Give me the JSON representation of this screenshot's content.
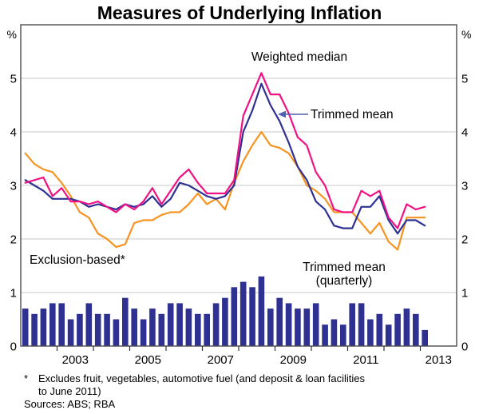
{
  "title": "Measures of Underlying Inflation",
  "axes": {
    "unit_left": "%",
    "unit_right": "%",
    "y_tick_labels": [
      "0",
      "1",
      "2",
      "3",
      "4",
      "5"
    ],
    "x_tick_labels": [
      "2003",
      "2005",
      "2007",
      "2009",
      "2011",
      "2013"
    ]
  },
  "annotations": {
    "weighted_median_label": "Weighted median",
    "trimmed_mean_label": "Trimmed mean",
    "exclusion_based_label": "Exclusion-based*",
    "bars_label_line1": "Trimmed mean",
    "bars_label_line2": "(quarterly)"
  },
  "footnote": {
    "asterisk": "*",
    "line1": "Excludes fruit, vegetables, automotive fuel (and deposit & loan facilities",
    "line2": "to June 2011)",
    "sources": "Sources: ABS; RBA"
  },
  "colors": {
    "weighted_median": "#f01285",
    "trimmed_mean": "#2e3192",
    "exclusion_based": "#f79421",
    "bars": "#2e3192",
    "arrow": "#5060b0",
    "gridline": "#c9c9c9",
    "frame": "#4d4d4d"
  },
  "chart_data": {
    "type": "line+bar",
    "title": "Measures of Underlying Inflation",
    "ylabel": "%",
    "ylim": [
      0,
      6
    ],
    "xlim": [
      2002,
      2014
    ],
    "y_ticks": [
      0,
      1,
      2,
      3,
      4,
      5
    ],
    "x_year_ticks": [
      2003,
      2004,
      2005,
      2006,
      2007,
      2008,
      2009,
      2010,
      2011,
      2012,
      2013
    ],
    "x_year_labels": [
      2003,
      2005,
      2007,
      2009,
      2011,
      2013
    ],
    "grid": "horizontal",
    "categories": [
      "2002Q1",
      "2002Q2",
      "2002Q3",
      "2002Q4",
      "2003Q1",
      "2003Q2",
      "2003Q3",
      "2003Q4",
      "2004Q1",
      "2004Q2",
      "2004Q3",
      "2004Q4",
      "2005Q1",
      "2005Q2",
      "2005Q3",
      "2005Q4",
      "2006Q1",
      "2006Q2",
      "2006Q3",
      "2006Q4",
      "2007Q1",
      "2007Q2",
      "2007Q3",
      "2007Q4",
      "2008Q1",
      "2008Q2",
      "2008Q3",
      "2008Q4",
      "2009Q1",
      "2009Q2",
      "2009Q3",
      "2009Q4",
      "2010Q1",
      "2010Q2",
      "2010Q3",
      "2010Q4",
      "2011Q1",
      "2011Q2",
      "2011Q3",
      "2011Q4",
      "2012Q1",
      "2012Q2",
      "2012Q3",
      "2012Q4",
      "2013Q1"
    ],
    "series": [
      {
        "name": "Weighted median",
        "type": "line",
        "color_key": "weighted_median",
        "values": [
          3.05,
          3.1,
          3.15,
          2.8,
          2.95,
          2.7,
          2.7,
          2.65,
          2.7,
          2.6,
          2.5,
          2.65,
          2.55,
          2.7,
          2.95,
          2.65,
          2.9,
          3.15,
          3.3,
          3.05,
          2.85,
          2.85,
          2.85,
          3.1,
          4.3,
          4.7,
          5.1,
          4.7,
          4.7,
          4.35,
          3.9,
          3.75,
          3.25,
          3.0,
          2.55,
          2.5,
          2.5,
          2.9,
          2.8,
          2.9,
          2.4,
          2.2,
          2.65,
          2.55,
          2.6
        ]
      },
      {
        "name": "Trimmed mean",
        "type": "line",
        "color_key": "trimmed_mean",
        "values": [
          3.1,
          3.0,
          2.9,
          2.75,
          2.75,
          2.75,
          2.7,
          2.6,
          2.65,
          2.6,
          2.55,
          2.65,
          2.6,
          2.65,
          2.8,
          2.6,
          2.75,
          3.05,
          3.0,
          2.9,
          2.8,
          2.75,
          2.8,
          3.0,
          4.0,
          4.4,
          4.9,
          4.5,
          4.2,
          3.8,
          3.35,
          3.1,
          2.7,
          2.55,
          2.25,
          2.2,
          2.2,
          2.6,
          2.6,
          2.8,
          2.35,
          2.1,
          2.35,
          2.35,
          2.25
        ]
      },
      {
        "name": "Exclusion-based",
        "type": "line",
        "color_key": "exclusion_based",
        "values": [
          3.6,
          3.4,
          3.3,
          3.25,
          3.05,
          2.8,
          2.5,
          2.4,
          2.1,
          2.0,
          1.85,
          1.9,
          2.3,
          2.35,
          2.35,
          2.45,
          2.5,
          2.5,
          2.65,
          2.85,
          2.65,
          2.75,
          2.55,
          3.05,
          3.45,
          3.75,
          4.0,
          3.75,
          3.7,
          3.6,
          3.35,
          3.0,
          2.9,
          2.75,
          2.5,
          2.5,
          2.5,
          2.3,
          2.1,
          2.3,
          1.95,
          1.8,
          2.4,
          2.4,
          2.4
        ]
      },
      {
        "name": "Trimmed mean (quarterly)",
        "type": "bar",
        "color_key": "bars",
        "values": [
          0.7,
          0.6,
          0.7,
          0.8,
          0.8,
          0.5,
          0.6,
          0.8,
          0.6,
          0.6,
          0.5,
          0.9,
          0.7,
          0.5,
          0.7,
          0.6,
          0.8,
          0.8,
          0.7,
          0.6,
          0.6,
          0.8,
          0.9,
          1.1,
          1.2,
          1.1,
          1.3,
          0.7,
          0.9,
          0.8,
          0.7,
          0.7,
          0.8,
          0.4,
          0.5,
          0.4,
          0.8,
          0.8,
          0.5,
          0.6,
          0.4,
          0.6,
          0.7,
          0.6,
          0.3
        ]
      }
    ]
  }
}
